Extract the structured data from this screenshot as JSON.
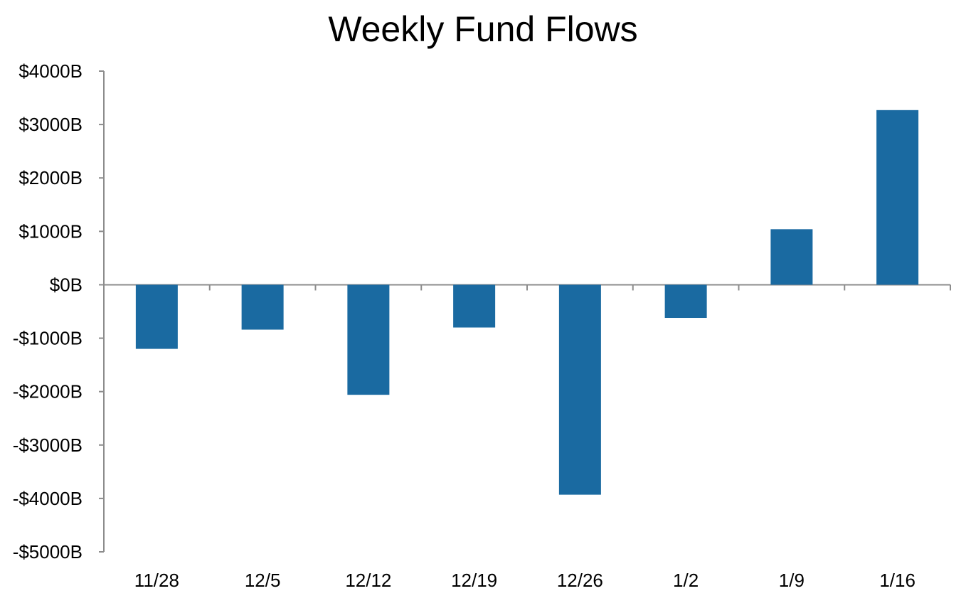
{
  "chart_data": {
    "type": "bar",
    "title": "Weekly Fund Flows",
    "xlabel": "",
    "ylabel": "",
    "categories": [
      "11/28",
      "12/5",
      "12/12",
      "12/19",
      "12/26",
      "1/2",
      "1/9",
      "1/16"
    ],
    "values": [
      -1200,
      -840,
      -2060,
      -800,
      -3930,
      -620,
      1040,
      3270
    ],
    "ylim": [
      -5000,
      4000
    ],
    "yticks": [
      4000,
      3000,
      2000,
      1000,
      0,
      -1000,
      -2000,
      -3000,
      -4000,
      -5000
    ],
    "ytick_labels": [
      "$4000B",
      "$3000B",
      "$2000B",
      "$1000B",
      "$0B",
      "-$1000B",
      "-$2000B",
      "-$3000B",
      "-$4000B",
      "-$5000B"
    ],
    "grid": false,
    "legend": "none",
    "bar_color": "#1a6aa1",
    "axis_color": "#8c8c8c"
  }
}
